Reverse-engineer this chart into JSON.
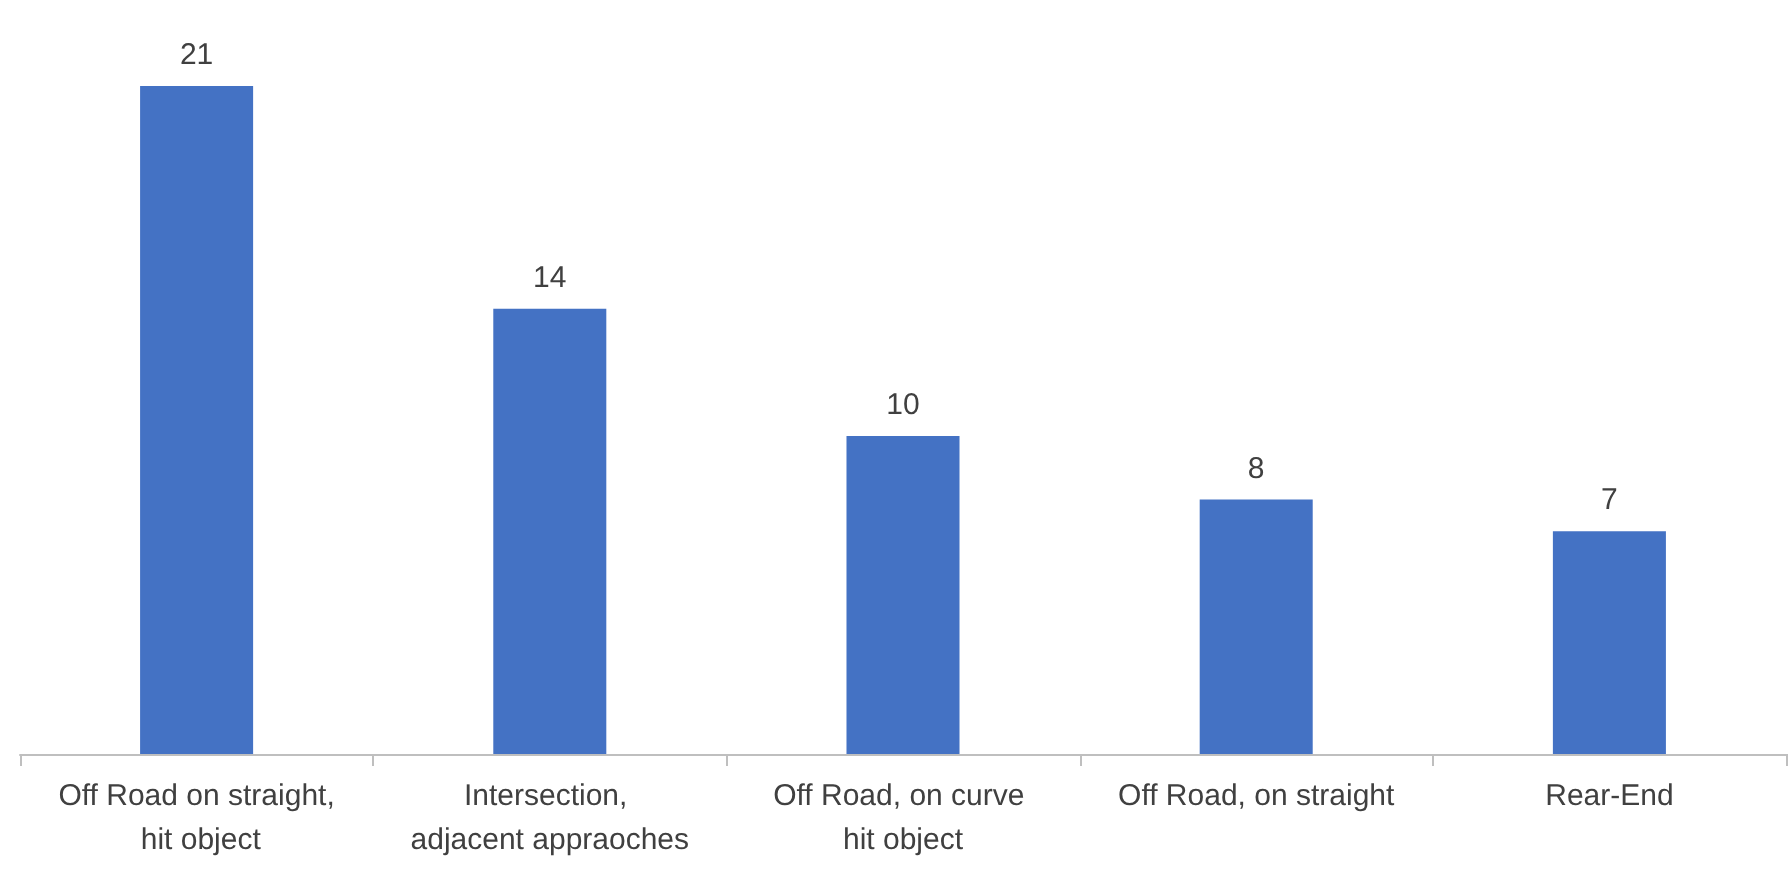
{
  "chart_data": {
    "type": "bar",
    "categories": [
      "Off Road on straight, hit object",
      "Intersection, adjacent appraoches",
      "Off Road, on curve hit object",
      "Off Road, on straight",
      "Rear-End"
    ],
    "values": [
      21,
      14,
      10,
      8,
      7
    ],
    "color": "#4472c4",
    "data_labels": true,
    "grid": false,
    "tick_labels": "x"
  }
}
